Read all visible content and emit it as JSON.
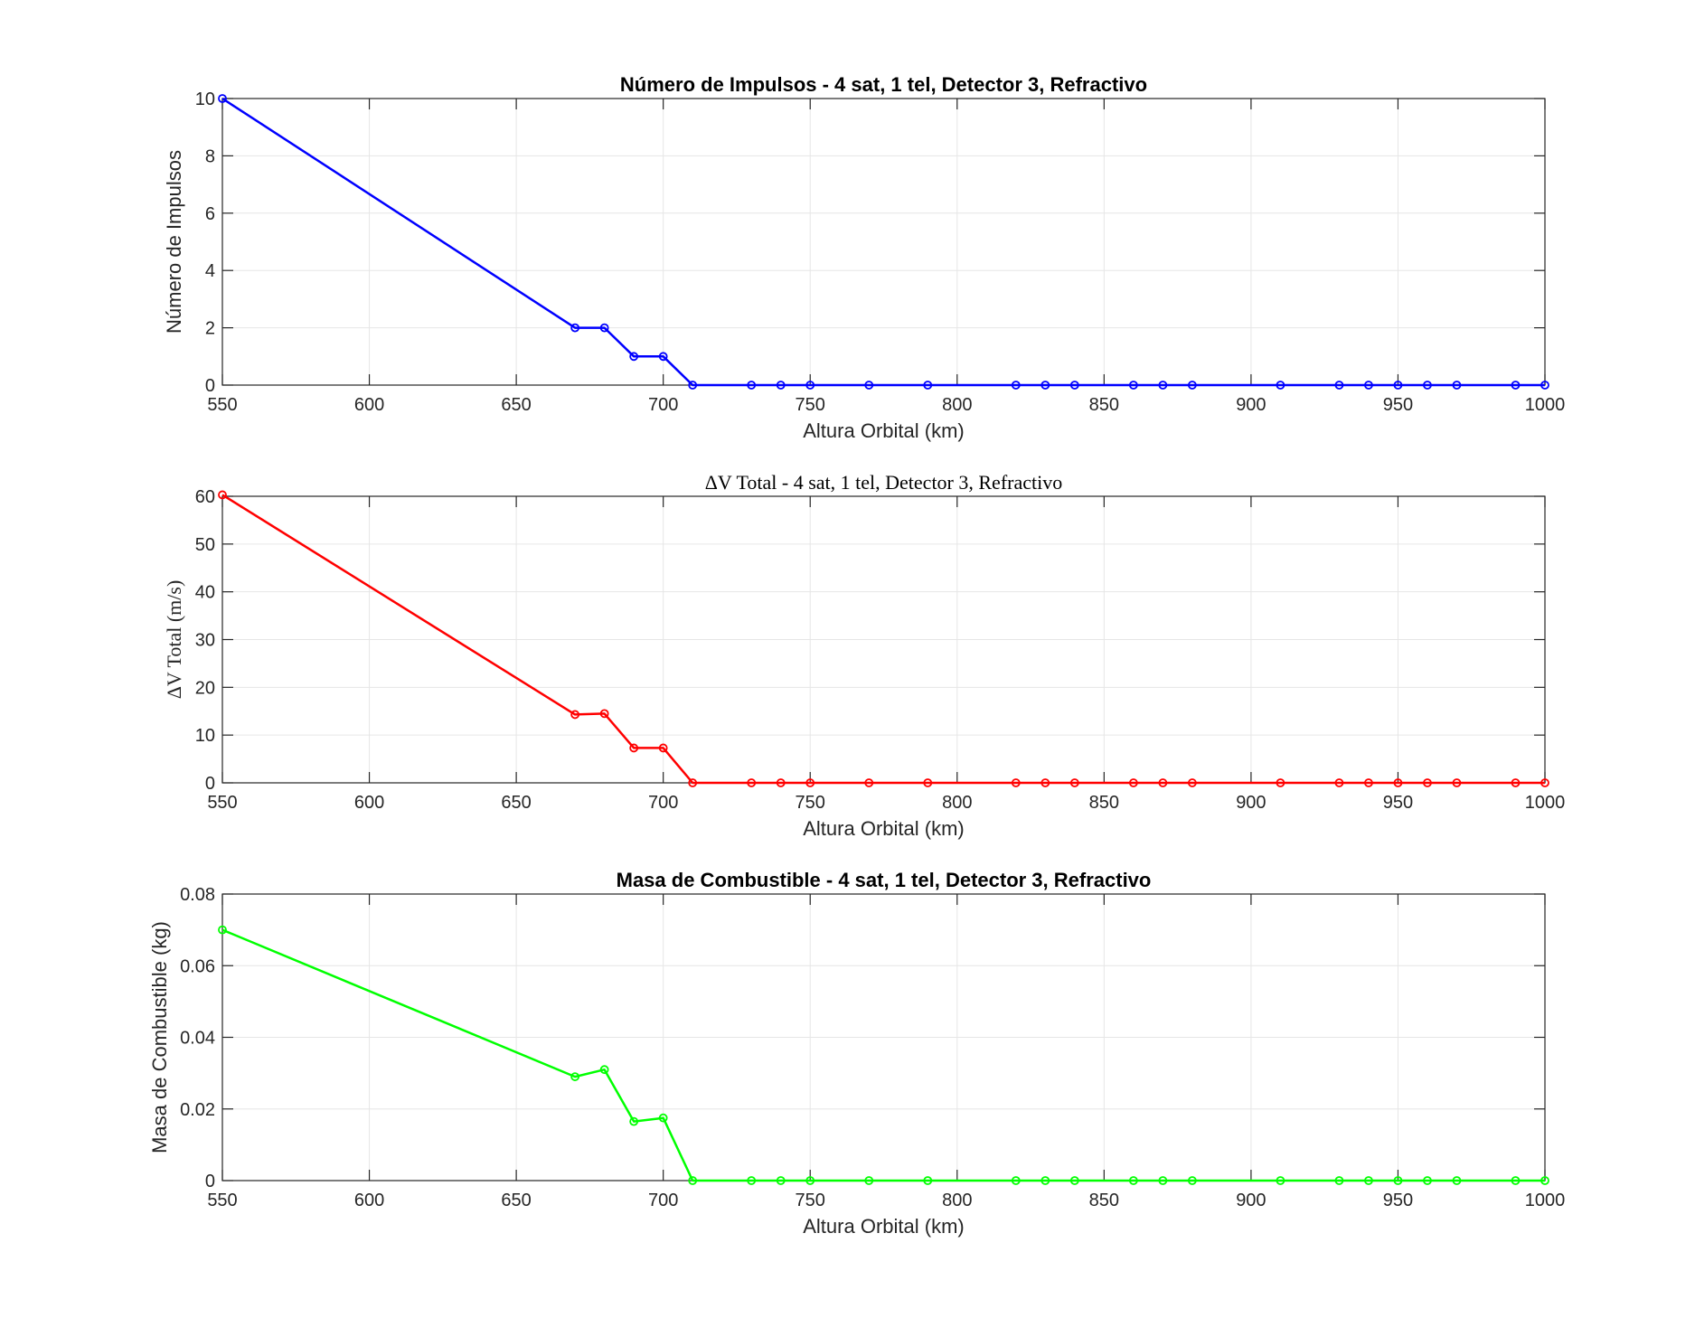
{
  "chart_data": [
    {
      "type": "line",
      "title": "Número de Impulsos - 4 sat, 1 tel, Detector 3, Refractivo",
      "title_style": "bold",
      "xlabel": "Altura Orbital (km)",
      "ylabel": "Número de Impulsos",
      "xlim": [
        550,
        1000
      ],
      "ylim": [
        0,
        10
      ],
      "xticks": [
        550,
        600,
        650,
        700,
        750,
        800,
        850,
        900,
        950,
        1000
      ],
      "yticks": [
        0,
        2,
        4,
        6,
        8,
        10
      ],
      "ytick_labels": [
        "0",
        "2",
        "4",
        "6",
        "8",
        "10"
      ],
      "grid": true,
      "marker": "circle",
      "color": "#0000ff",
      "x": [
        550,
        670,
        680,
        690,
        700,
        710,
        730,
        740,
        750,
        770,
        790,
        820,
        830,
        840,
        860,
        870,
        880,
        910,
        930,
        940,
        950,
        960,
        970,
        990,
        1000
      ],
      "y": [
        10,
        2,
        2,
        1,
        1,
        0,
        0,
        0,
        0,
        0,
        0,
        0,
        0,
        0,
        0,
        0,
        0,
        0,
        0,
        0,
        0,
        0,
        0,
        0,
        0
      ]
    },
    {
      "type": "line",
      "title": "ΔV Total - 4 sat, 1 tel, Detector 3, Refractivo",
      "title_style": "serif",
      "xlabel": "Altura Orbital (km)",
      "ylabel": "ΔV Total (m/s)",
      "xlim": [
        550,
        1000
      ],
      "ylim": [
        0,
        60
      ],
      "xticks": [
        550,
        600,
        650,
        700,
        750,
        800,
        850,
        900,
        950,
        1000
      ],
      "yticks": [
        0,
        10,
        20,
        30,
        40,
        50,
        60
      ],
      "ytick_labels": [
        "0",
        "10",
        "20",
        "30",
        "40",
        "50",
        "60"
      ],
      "grid": true,
      "marker": "circle",
      "color": "#ff0000",
      "x": [
        550,
        670,
        680,
        690,
        700,
        710,
        730,
        740,
        750,
        770,
        790,
        820,
        830,
        840,
        860,
        870,
        880,
        910,
        930,
        940,
        950,
        960,
        970,
        990,
        1000
      ],
      "y": [
        60.3,
        14.3,
        14.5,
        7.3,
        7.3,
        0,
        0,
        0,
        0,
        0,
        0,
        0,
        0,
        0,
        0,
        0,
        0,
        0,
        0,
        0,
        0,
        0,
        0,
        0,
        0
      ]
    },
    {
      "type": "line",
      "title": "Masa de Combustible - 4 sat, 1 tel, Detector 3, Refractivo",
      "title_style": "bold",
      "xlabel": "Altura Orbital (km)",
      "ylabel": "Masa de Combustible (kg)",
      "xlim": [
        550,
        1000
      ],
      "ylim": [
        0,
        0.08
      ],
      "xticks": [
        550,
        600,
        650,
        700,
        750,
        800,
        850,
        900,
        950,
        1000
      ],
      "yticks": [
        0,
        0.02,
        0.04,
        0.06,
        0.08
      ],
      "ytick_labels": [
        "0",
        "0.02",
        "0.04",
        "0.06",
        "0.08"
      ],
      "grid": true,
      "marker": "circle",
      "color": "#00ff00",
      "x": [
        550,
        670,
        680,
        690,
        700,
        710,
        730,
        740,
        750,
        770,
        790,
        820,
        830,
        840,
        860,
        870,
        880,
        910,
        930,
        940,
        950,
        960,
        970,
        990,
        1000
      ],
      "y": [
        0.07,
        0.029,
        0.031,
        0.0165,
        0.0175,
        0,
        0,
        0,
        0,
        0,
        0,
        0,
        0,
        0,
        0,
        0,
        0,
        0,
        0,
        0,
        0,
        0,
        0,
        0,
        0
      ]
    }
  ]
}
